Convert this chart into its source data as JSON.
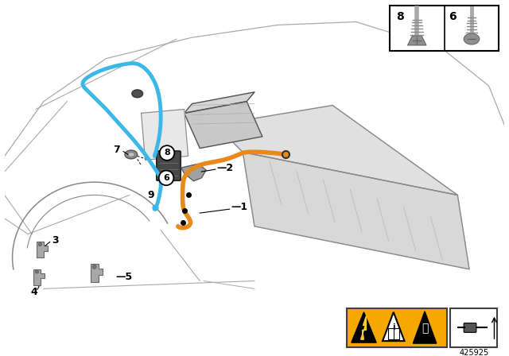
{
  "bg_color": "#ffffff",
  "part_number": "425925",
  "orange": "#E8891A",
  "blue": "#3BB8E8",
  "dark_gray": "#555555",
  "mid_gray": "#888888",
  "light_gray": "#cccccc",
  "comp_gray": "#909090",
  "black": "#000000",
  "warning_yellow": "#F5A800",
  "body_line": "#aaaaaa",
  "screw_gray": "#888888"
}
